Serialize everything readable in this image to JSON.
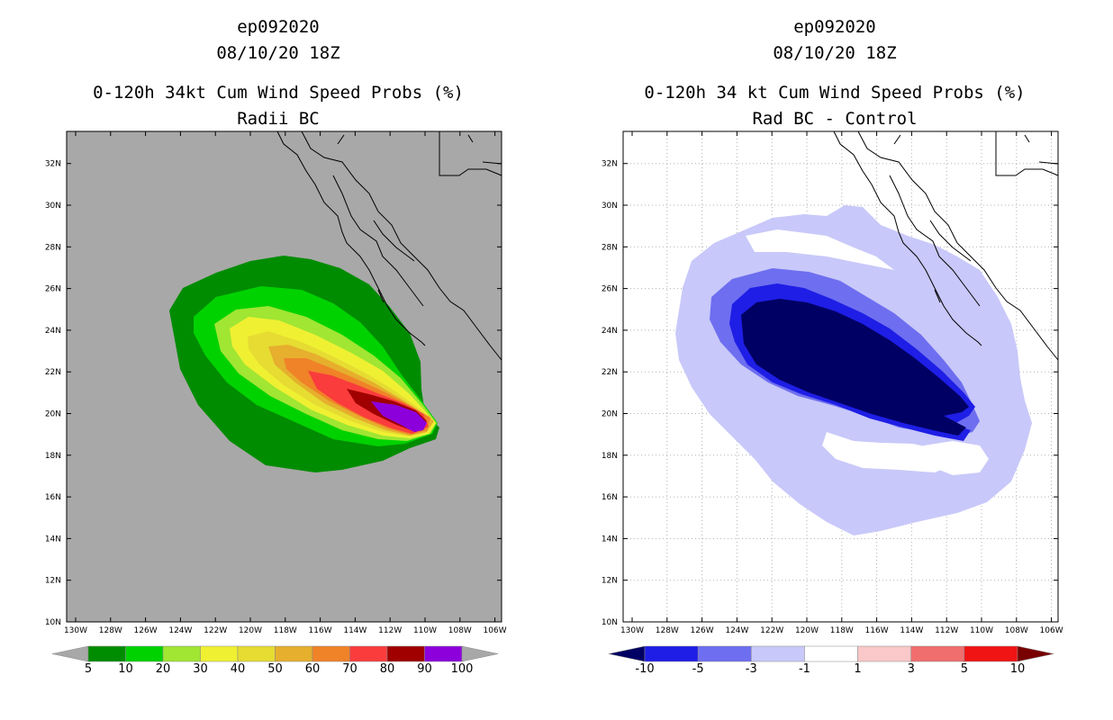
{
  "colors": {
    "left_background": "#a8a8a8",
    "right_background": "#ffffff",
    "land_line": "#000000",
    "grid_line": "#b0b0b0"
  },
  "axes": {
    "lat_labels": [
      "10N",
      "12N",
      "14N",
      "16N",
      "18N",
      "20N",
      "22N",
      "24N",
      "26N",
      "28N",
      "30N",
      "32N"
    ],
    "lon_labels": [
      "130W",
      "128W",
      "126W",
      "124W",
      "122W",
      "120W",
      "118W",
      "116W",
      "114W",
      "112W",
      "110W",
      "108W",
      "106W"
    ]
  },
  "left_panel": {
    "title1": "ep092020",
    "title2": "08/10/20 18Z",
    "title3": "0-120h 34kt Cum Wind Speed Probs (%)",
    "title4": "Radii BC",
    "legend": {
      "colors": [
        "#008c00",
        "#00d200",
        "#a0e632",
        "#f0f032",
        "#e6dc32",
        "#e6af2d",
        "#f08228",
        "#fa3c3c",
        "#a00000",
        "#8c00dc"
      ],
      "labels": [
        "5",
        "10",
        "20",
        "30",
        "40",
        "50",
        "60",
        "70",
        "80",
        "90",
        "100"
      ]
    }
  },
  "right_panel": {
    "title1": "ep092020",
    "title2": "08/10/20 18Z",
    "title3": "0-120h 34 kt Cum Wind Speed Probs (%)",
    "title4": "Rad BC - Control",
    "legend": {
      "colors": [
        "#000064",
        "#1e1ee6",
        "#6e6ef0",
        "#c8c8fa",
        "#ffffff",
        "#fac8c8",
        "#f06e6e",
        "#f01414",
        "#780000"
      ],
      "labels": [
        "-10",
        "-5",
        "-3",
        "-1",
        "1",
        "3",
        "5",
        "10"
      ]
    }
  }
}
